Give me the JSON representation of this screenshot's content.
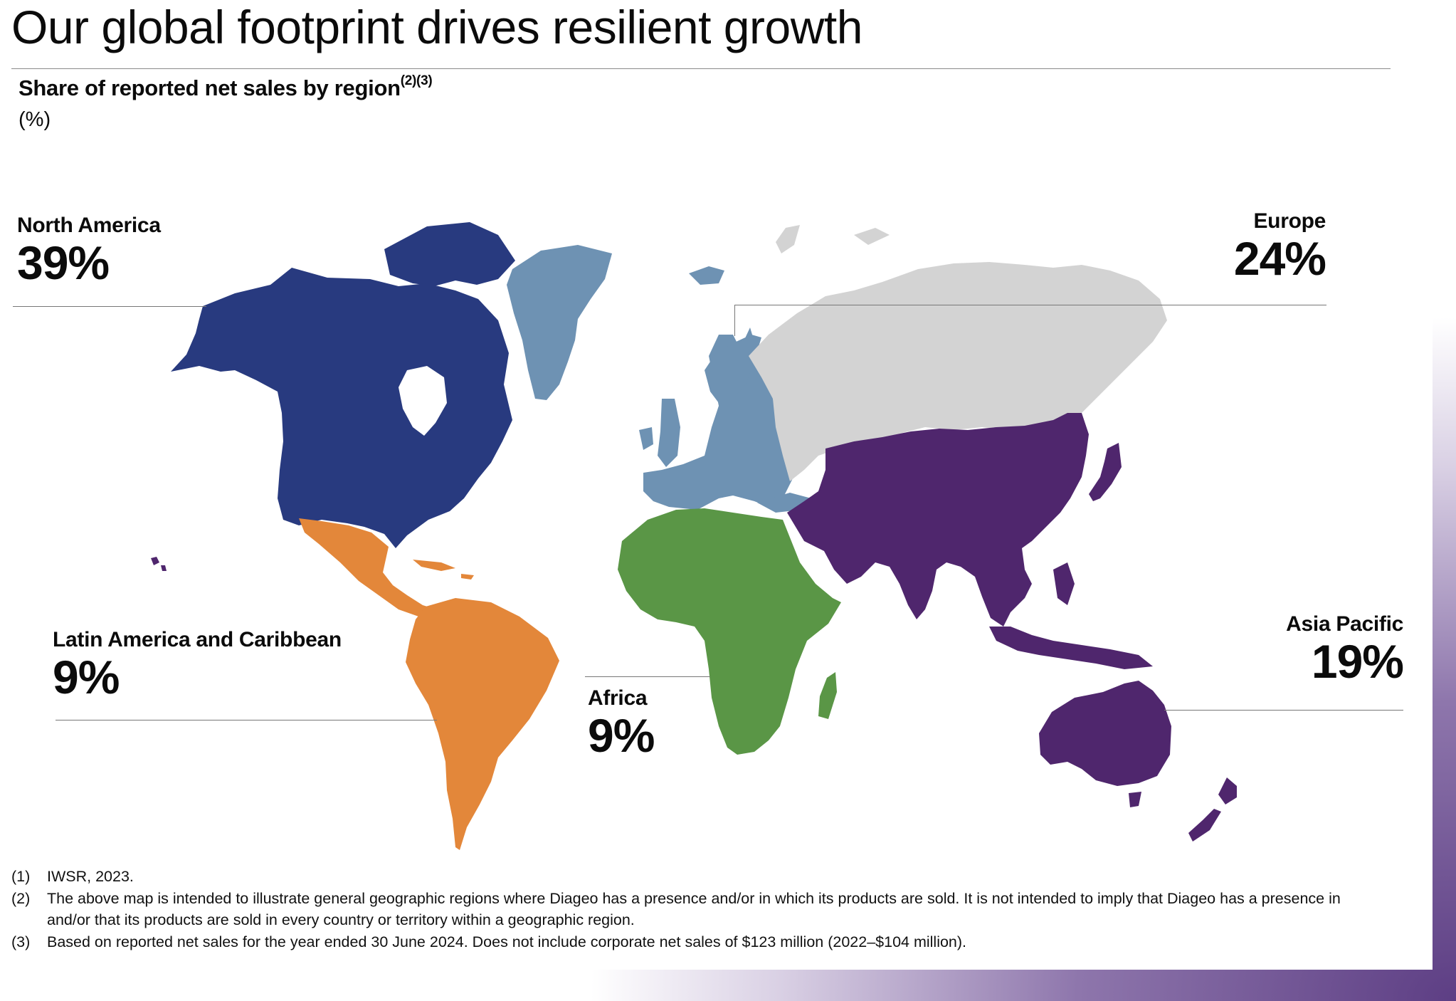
{
  "title": "Our global footprint drives resilient growth",
  "subtitle": {
    "text": "Share of reported net sales by region",
    "footnote_refs": "(2)(3)",
    "unit": "(%)"
  },
  "colors": {
    "north_america": "#283a7f",
    "latin_america": "#e3873a",
    "europe_west": "#6e92b3",
    "europe_east_russia": "#d3d3d3",
    "africa": "#5a9646",
    "asia_pacific": "#4f266d",
    "greenland": "#6e92b3"
  },
  "chart_data": {
    "type": "map",
    "title": "Share of reported net sales by region",
    "unit": "%",
    "regions": [
      {
        "name": "North America",
        "value": 39,
        "label": "39%",
        "color": "#283a7f"
      },
      {
        "name": "Europe",
        "value": 24,
        "label": "24%",
        "color": "#d3d3d3"
      },
      {
        "name": "Latin America and Caribbean",
        "value": 9,
        "label": "9%",
        "color": "#e3873a"
      },
      {
        "name": "Africa",
        "value": 9,
        "label": "9%",
        "color": "#5a9646"
      },
      {
        "name": "Asia Pacific",
        "value": 19,
        "label": "19%",
        "color": "#4f266d"
      }
    ]
  },
  "footnotes": [
    {
      "num": "(1)",
      "text": "IWSR, 2023."
    },
    {
      "num": "(2)",
      "text": "The above map is intended to illustrate general geographic regions where Diageo has a presence and/or in which its products are sold. It is not intended to imply that Diageo has a presence in and/or that its products are sold in every country or territory within a geographic region."
    },
    {
      "num": "(3)",
      "text": "Based on reported net sales for the year ended 30 June 2024. Does not include corporate net sales of $123 million (2022–$104 million)."
    }
  ]
}
